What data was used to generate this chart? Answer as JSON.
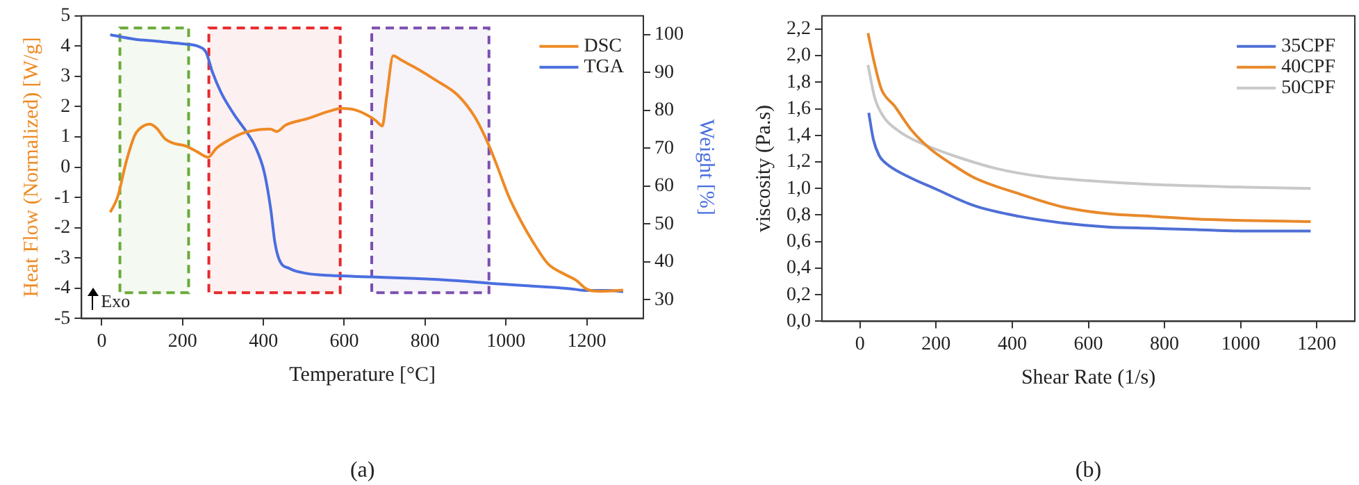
{
  "chart_data": [
    {
      "type": "line",
      "xlabel": "Temperature [°C]",
      "ylabel": "Heat Flow (Normalized) [W/g]",
      "y2label": "Weight [%]",
      "xlim": [
        -50,
        1340
      ],
      "xticks": [
        0,
        200,
        400,
        600,
        800,
        1000,
        1200
      ],
      "ylim": [
        -5,
        5
      ],
      "yticks": [
        -5,
        -4,
        -3,
        -2,
        -1,
        0,
        1,
        2,
        3,
        4,
        5
      ],
      "y2lim": [
        25,
        105
      ],
      "y2ticks": [
        30,
        40,
        50,
        60,
        70,
        80,
        90,
        100
      ],
      "grid": false,
      "legend": "top right",
      "marker": "none",
      "annotations": [
        "Exo",
        "(a)"
      ],
      "bands": [
        {
          "axis": "x",
          "from": 45,
          "to": 215,
          "color": "#6aaa3a"
        },
        {
          "axis": "x",
          "from": 265,
          "to": 590,
          "color": "#e8282b"
        },
        {
          "axis": "x",
          "from": 668,
          "to": 958,
          "color": "#7b4fb0"
        }
      ],
      "series": [
        {
          "name": "DSC",
          "color": "#ee8a24",
          "x": [
            21,
            39,
            61,
            82,
            103,
            119,
            135,
            157,
            178,
            210,
            236,
            263,
            284,
            316,
            348,
            390,
            417,
            433,
            455,
            508,
            561,
            593,
            625,
            657,
            678,
            694,
            705,
            721,
            742,
            774,
            827,
            880,
            923,
            955,
            977,
            1008,
            1040,
            1072,
            1104,
            1147,
            1173,
            1200,
            1232,
            1290
          ],
          "values": [
            -1.49,
            -1.0,
            0.2,
            1.06,
            1.36,
            1.42,
            1.3,
            0.93,
            0.79,
            0.69,
            0.51,
            0.33,
            0.63,
            0.91,
            1.12,
            1.24,
            1.26,
            1.18,
            1.39,
            1.6,
            1.84,
            1.94,
            1.9,
            1.72,
            1.54,
            1.36,
            2.33,
            3.68,
            3.53,
            3.3,
            2.87,
            2.39,
            1.66,
            0.81,
            0.08,
            -1.0,
            -1.85,
            -2.58,
            -3.19,
            -3.55,
            -3.73,
            -4.03,
            -4.1,
            -4.06
          ]
        },
        {
          "name": "TGA",
          "color": "#4a6ee0",
          "axis": "y2",
          "x": [
            21,
            82,
            135,
            199,
            242,
            258,
            274,
            295,
            327,
            359,
            380,
            402,
            418,
            428,
            439,
            465,
            508,
            561,
            668,
            774,
            880,
            987,
            1093,
            1158,
            1200,
            1253,
            1290
          ],
          "values": [
            100,
            98.8,
            98.3,
            97.6,
            96.8,
            95.4,
            90.1,
            84.8,
            79.0,
            74.2,
            70.4,
            63.7,
            54.0,
            45.4,
            40.6,
            38.2,
            36.9,
            36.4,
            36.0,
            35.6,
            35.0,
            34.1,
            33.4,
            32.9,
            32.4,
            32.4,
            32.1
          ]
        }
      ]
    },
    {
      "type": "line",
      "xlabel": "Shear Rate (1/s)",
      "ylabel": "viscosity (Pa.s)",
      "xlim": [
        -100,
        1300
      ],
      "xticks": [
        0,
        200,
        400,
        600,
        800,
        1000,
        1200
      ],
      "ylim": [
        0,
        2.3
      ],
      "yticks": [
        {
          "value": 0,
          "label": "0,0"
        },
        {
          "value": 0.2,
          "label": "0,2"
        },
        {
          "value": 0.4,
          "label": "0,4"
        },
        {
          "value": 0.6,
          "label": "0,6"
        },
        {
          "value": 0.8,
          "label": "0,8"
        },
        {
          "value": 1.0,
          "label": "1,0"
        },
        {
          "value": 1.2,
          "label": "1,2"
        },
        {
          "value": 1.4,
          "label": "1,4"
        },
        {
          "value": 1.6,
          "label": "1,6"
        },
        {
          "value": 1.8,
          "label": "1,8"
        },
        {
          "value": 2.0,
          "label": "2,0"
        },
        {
          "value": 2.2,
          "label": "2,2"
        }
      ],
      "grid": false,
      "legend": "top right",
      "marker": "none",
      "annotations": [
        "(b)"
      ],
      "series": [
        {
          "name": "35CPF",
          "color": "#4f6fd6",
          "x": [
            23,
            35,
            50,
            68,
            126,
            196,
            301,
            418,
            534,
            651,
            768,
            884,
            1001,
            1184
          ],
          "values": [
            1.57,
            1.37,
            1.25,
            1.19,
            1.09,
            1.0,
            0.87,
            0.79,
            0.74,
            0.71,
            0.7,
            0.69,
            0.68,
            0.68
          ]
        },
        {
          "name": "40CPF",
          "color": "#e8892b",
          "x": [
            21,
            39,
            56,
            91,
            138,
            184,
            243,
            301,
            418,
            534,
            651,
            768,
            884,
            1001,
            1184
          ],
          "values": [
            2.17,
            1.93,
            1.75,
            1.62,
            1.43,
            1.3,
            1.18,
            1.08,
            0.96,
            0.86,
            0.81,
            0.79,
            0.77,
            0.76,
            0.75
          ]
        },
        {
          "name": "50CPF",
          "color": "#c8c8c8",
          "x": [
            21,
            39,
            62,
            103,
            161,
            243,
            359,
            476,
            593,
            768,
            884,
            1001,
            1184
          ],
          "values": [
            1.93,
            1.68,
            1.54,
            1.43,
            1.34,
            1.25,
            1.15,
            1.09,
            1.06,
            1.03,
            1.02,
            1.01,
            1.0
          ]
        }
      ]
    }
  ]
}
